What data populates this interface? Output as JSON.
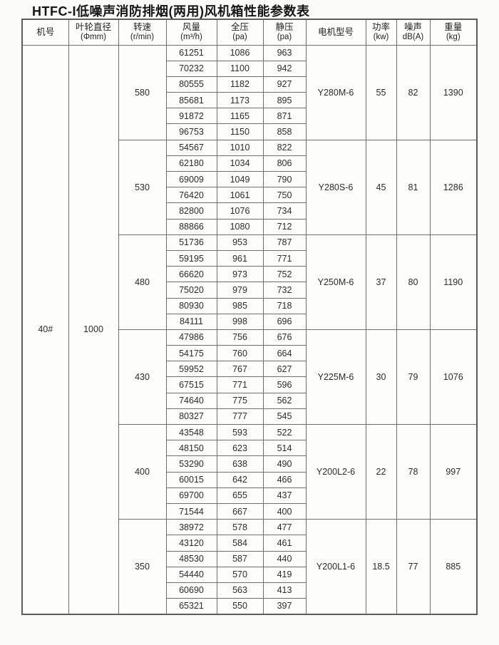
{
  "title": "HTFC-I低噪声消防排烟(两用)风机箱性能参数表",
  "table": {
    "headers": [
      {
        "name": "机号",
        "unit": ""
      },
      {
        "name": "叶轮直径",
        "unit": "(Φmm)"
      },
      {
        "name": "转速",
        "unit": "(r/min)"
      },
      {
        "name": "风量",
        "unit": "(m³/h)"
      },
      {
        "name": "全压",
        "unit": "(pa)"
      },
      {
        "name": "静压",
        "unit": "(pa)"
      },
      {
        "name": "电机型号",
        "unit": ""
      },
      {
        "name": "功率",
        "unit": "(kw)"
      },
      {
        "name": "噪声",
        "unit": "dB(A)"
      },
      {
        "name": "重量",
        "unit": "(kg)"
      }
    ],
    "machine_no": "40#",
    "impeller_diameter": "1000",
    "groups": [
      {
        "speed": "580",
        "motor_model": "Y280M-6",
        "power_kw": "55",
        "noise_db": "82",
        "weight_kg": "1390",
        "rows": [
          [
            "61251",
            "1086",
            "963"
          ],
          [
            "70232",
            "1100",
            "942"
          ],
          [
            "80555",
            "1182",
            "927"
          ],
          [
            "85681",
            "1173",
            "895"
          ],
          [
            "91872",
            "1165",
            "871"
          ],
          [
            "96753",
            "1150",
            "858"
          ]
        ]
      },
      {
        "speed": "530",
        "motor_model": "Y280S-6",
        "power_kw": "45",
        "noise_db": "81",
        "weight_kg": "1286",
        "rows": [
          [
            "54567",
            "1010",
            "822"
          ],
          [
            "62180",
            "1034",
            "806"
          ],
          [
            "69009",
            "1049",
            "790"
          ],
          [
            "76420",
            "1061",
            "750"
          ],
          [
            "82800",
            "1076",
            "734"
          ],
          [
            "88866",
            "1080",
            "712"
          ]
        ]
      },
      {
        "speed": "480",
        "motor_model": "Y250M-6",
        "power_kw": "37",
        "noise_db": "80",
        "weight_kg": "1190",
        "rows": [
          [
            "51736",
            "953",
            "787"
          ],
          [
            "59195",
            "961",
            "771"
          ],
          [
            "66620",
            "973",
            "752"
          ],
          [
            "75020",
            "979",
            "732"
          ],
          [
            "80930",
            "985",
            "718"
          ],
          [
            "84111",
            "998",
            "696"
          ]
        ]
      },
      {
        "speed": "430",
        "motor_model": "Y225M-6",
        "power_kw": "30",
        "noise_db": "79",
        "weight_kg": "1076",
        "rows": [
          [
            "47986",
            "756",
            "676"
          ],
          [
            "54175",
            "760",
            "664"
          ],
          [
            "59952",
            "767",
            "627"
          ],
          [
            "67515",
            "771",
            "596"
          ],
          [
            "74640",
            "775",
            "562"
          ],
          [
            "80327",
            "777",
            "545"
          ]
        ]
      },
      {
        "speed": "400",
        "motor_model": "Y200L2-6",
        "power_kw": "22",
        "noise_db": "78",
        "weight_kg": "997",
        "rows": [
          [
            "43548",
            "593",
            "522"
          ],
          [
            "48150",
            "623",
            "514"
          ],
          [
            "53290",
            "638",
            "490"
          ],
          [
            "60015",
            "642",
            "466"
          ],
          [
            "69700",
            "655",
            "437"
          ],
          [
            "71544",
            "667",
            "400"
          ]
        ]
      },
      {
        "speed": "350",
        "motor_model": "Y200L1-6",
        "power_kw": "18.5",
        "noise_db": "77",
        "weight_kg": "885",
        "rows": [
          [
            "38972",
            "578",
            "477"
          ],
          [
            "43120",
            "584",
            "461"
          ],
          [
            "48530",
            "587",
            "440"
          ],
          [
            "54440",
            "570",
            "419"
          ],
          [
            "60690",
            "563",
            "413"
          ],
          [
            "65321",
            "550",
            "397"
          ]
        ]
      }
    ]
  }
}
